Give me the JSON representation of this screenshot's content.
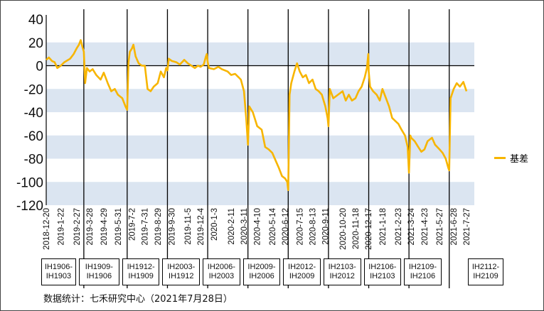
{
  "chart_data": {
    "type": "line",
    "ylim": [
      -120,
      40
    ],
    "yticks": [
      40,
      20,
      0,
      -20,
      -40,
      -60,
      -80,
      -100,
      -120
    ],
    "ybands": [
      [
        0,
        20
      ],
      [
        -40,
        -20
      ],
      [
        -80,
        -60
      ],
      [
        -120,
        -100
      ]
    ],
    "band_color": "#dbe5f1",
    "line_color": "#f7b500",
    "x_start": "2018-12-20",
    "x_end": "2021-7-27",
    "xtick_labels": [
      "2018-12-20",
      "2019-1-22",
      "2019-2-27",
      "2019-3-28",
      "2019-4-29",
      "2019-5-31",
      "2019-7-2",
      "2019-7-31",
      "2019-8-29",
      "2019-9-30",
      "2019-11-5",
      "2019-12-4",
      "2020-1-3",
      "2020-2-11",
      "2020-3-11",
      "2020-4-10",
      "2020-5-14",
      "2020-6-12",
      "2020-7-15",
      "2020-8-13",
      "2020-9-11",
      "2020-10-20",
      "2020-11-18",
      "2020-12-17",
      "2021-1-18",
      "2021-2-23",
      "2021-3-24",
      "2021-4-23",
      "2021-5-27",
      "2021-6-28",
      "2021-7-27"
    ],
    "roll_dates": [
      "2019-3-15",
      "2019-6-21",
      "2019-9-20",
      "2019-12-20",
      "2020-3-20",
      "2020-6-19",
      "2020-9-18",
      "2020-12-18",
      "2021-3-19",
      "2021-6-18"
    ],
    "series": [
      {
        "name": "基差",
        "points": [
          [
            "2018-12-20",
            5
          ],
          [
            "2018-12-26",
            7
          ],
          [
            "2019-1-2",
            4
          ],
          [
            "2019-1-8",
            3
          ],
          [
            "2019-1-14",
            -2
          ],
          [
            "2019-1-22",
            0
          ],
          [
            "2019-1-30",
            3
          ],
          [
            "2019-2-12",
            6
          ],
          [
            "2019-2-20",
            10
          ],
          [
            "2019-2-27",
            15
          ],
          [
            "2019-3-4",
            18
          ],
          [
            "2019-3-8",
            22
          ],
          [
            "2019-3-12",
            16
          ],
          [
            "2019-3-15",
            12
          ],
          [
            "2019-3-18",
            -15
          ],
          [
            "2019-3-22",
            -2
          ],
          [
            "2019-3-28",
            -5
          ],
          [
            "2019-4-4",
            -3
          ],
          [
            "2019-4-12",
            -8
          ],
          [
            "2019-4-22",
            -12
          ],
          [
            "2019-4-29",
            -6
          ],
          [
            "2019-5-8",
            -15
          ],
          [
            "2019-5-16",
            -22
          ],
          [
            "2019-5-24",
            -20
          ],
          [
            "2019-5-31",
            -25
          ],
          [
            "2019-6-10",
            -28
          ],
          [
            "2019-6-17",
            -35
          ],
          [
            "2019-6-21",
            -38
          ],
          [
            "2019-6-24",
            3
          ],
          [
            "2019-6-27",
            12
          ],
          [
            "2019-7-2",
            15
          ],
          [
            "2019-7-5",
            18
          ],
          [
            "2019-7-10",
            8
          ],
          [
            "2019-7-17",
            2
          ],
          [
            "2019-7-24",
            0
          ],
          [
            "2019-7-31",
            0
          ],
          [
            "2019-8-6",
            -20
          ],
          [
            "2019-8-13",
            -22
          ],
          [
            "2019-8-20",
            -18
          ],
          [
            "2019-8-29",
            -15
          ],
          [
            "2019-9-5",
            -5
          ],
          [
            "2019-9-12",
            -10
          ],
          [
            "2019-9-17",
            -2
          ],
          [
            "2019-9-20",
            -4
          ],
          [
            "2019-9-23",
            6
          ],
          [
            "2019-9-30",
            4
          ],
          [
            "2019-10-10",
            3
          ],
          [
            "2019-10-18",
            1
          ],
          [
            "2019-10-28",
            5
          ],
          [
            "2019-11-5",
            2
          ],
          [
            "2019-11-13",
            0
          ],
          [
            "2019-11-21",
            -2
          ],
          [
            "2019-11-28",
            0
          ],
          [
            "2019-12-4",
            -1
          ],
          [
            "2019-12-11",
            1
          ],
          [
            "2019-12-16",
            8
          ],
          [
            "2019-12-18",
            10
          ],
          [
            "2019-12-20",
            3
          ],
          [
            "2019-12-23",
            -2
          ],
          [
            "2020-1-3",
            -3
          ],
          [
            "2020-1-13",
            -1
          ],
          [
            "2020-1-21",
            -3
          ],
          [
            "2020-2-3",
            -5
          ],
          [
            "2020-2-11",
            -8
          ],
          [
            "2020-2-20",
            -7
          ],
          [
            "2020-2-28",
            -10
          ],
          [
            "2020-3-4",
            -12
          ],
          [
            "2020-3-11",
            -22
          ],
          [
            "2020-3-16",
            -45
          ],
          [
            "2020-3-20",
            -68
          ],
          [
            "2020-3-23",
            -35
          ],
          [
            "2020-3-31",
            -40
          ],
          [
            "2020-4-10",
            -52
          ],
          [
            "2020-4-20",
            -55
          ],
          [
            "2020-4-28",
            -70
          ],
          [
            "2020-5-6",
            -72
          ],
          [
            "2020-5-14",
            -75
          ],
          [
            "2020-5-22",
            -82
          ],
          [
            "2020-5-29",
            -88
          ],
          [
            "2020-6-5",
            -95
          ],
          [
            "2020-6-12",
            -97
          ],
          [
            "2020-6-17",
            -100
          ],
          [
            "2020-6-19",
            -107
          ],
          [
            "2020-6-22",
            -25
          ],
          [
            "2020-6-26",
            -15
          ],
          [
            "2020-7-3",
            -5
          ],
          [
            "2020-7-9",
            2
          ],
          [
            "2020-7-15",
            -5
          ],
          [
            "2020-7-22",
            -10
          ],
          [
            "2020-7-29",
            -8
          ],
          [
            "2020-8-5",
            -15
          ],
          [
            "2020-8-13",
            -12
          ],
          [
            "2020-8-20",
            -20
          ],
          [
            "2020-8-27",
            -22
          ],
          [
            "2020-9-3",
            -25
          ],
          [
            "2020-9-11",
            -35
          ],
          [
            "2020-9-16",
            -45
          ],
          [
            "2020-9-18",
            -52
          ],
          [
            "2020-9-21",
            -20
          ],
          [
            "2020-9-29",
            -28
          ],
          [
            "2020-10-20",
            -22
          ],
          [
            "2020-10-27",
            -30
          ],
          [
            "2020-11-3",
            -25
          ],
          [
            "2020-11-10",
            -30
          ],
          [
            "2020-11-18",
            -28
          ],
          [
            "2020-11-25",
            -22
          ],
          [
            "2020-12-2",
            -18
          ],
          [
            "2020-12-9",
            -10
          ],
          [
            "2020-12-14",
            -2
          ],
          [
            "2020-12-17",
            10
          ],
          [
            "2020-12-18",
            -5
          ],
          [
            "2020-12-21",
            -18
          ],
          [
            "2020-12-28",
            -22
          ],
          [
            "2021-1-5",
            -25
          ],
          [
            "2021-1-12",
            -30
          ],
          [
            "2021-1-18",
            -20
          ],
          [
            "2021-1-26",
            -28
          ],
          [
            "2021-2-2",
            -35
          ],
          [
            "2021-2-9",
            -45
          ],
          [
            "2021-2-23",
            -50
          ],
          [
            "2021-3-2",
            -55
          ],
          [
            "2021-3-10",
            -60
          ],
          [
            "2021-3-16",
            -70
          ],
          [
            "2021-3-19",
            -92
          ],
          [
            "2021-3-22",
            -60
          ],
          [
            "2021-3-24",
            -62
          ],
          [
            "2021-4-1",
            -65
          ],
          [
            "2021-4-9",
            -70
          ],
          [
            "2021-4-16",
            -74
          ],
          [
            "2021-4-23",
            -72
          ],
          [
            "2021-4-30",
            -65
          ],
          [
            "2021-5-10",
            -62
          ],
          [
            "2021-5-17",
            -68
          ],
          [
            "2021-5-27",
            -72
          ],
          [
            "2021-6-3",
            -75
          ],
          [
            "2021-6-10",
            -80
          ],
          [
            "2021-6-16",
            -88
          ],
          [
            "2021-6-18",
            -90
          ],
          [
            "2021-6-21",
            -28
          ],
          [
            "2021-6-28",
            -20
          ],
          [
            "2021-7-5",
            -15
          ],
          [
            "2021-7-12",
            -18
          ],
          [
            "2021-7-20",
            -14
          ],
          [
            "2021-7-27",
            -22
          ]
        ]
      }
    ],
    "legend": {
      "position": "right",
      "label": "基差"
    }
  },
  "contracts": [
    {
      "line1": "IH1906-",
      "line2": "IH1903"
    },
    {
      "line1": "IH1909-",
      "line2": "IH1906"
    },
    {
      "line1": "IH1912-",
      "line2": "IH1909"
    },
    {
      "line1": "IH2003-",
      "line2": "IH1912"
    },
    {
      "line1": "IH2006-",
      "line2": "IH2003"
    },
    {
      "line1": "IH2009-",
      "line2": "IH2006"
    },
    {
      "line1": "IH2012-",
      "line2": "IH2009"
    },
    {
      "line1": "IH2103-",
      "line2": "IH2012"
    },
    {
      "line1": "IH2106-",
      "line2": "IH2103"
    },
    {
      "line1": "IH2109-",
      "line2": "IH2106"
    },
    {
      "line1": "IH2112-",
      "line2": "IH2109"
    }
  ],
  "source": "数据统计：七禾研究中心（2021年7月28日）"
}
